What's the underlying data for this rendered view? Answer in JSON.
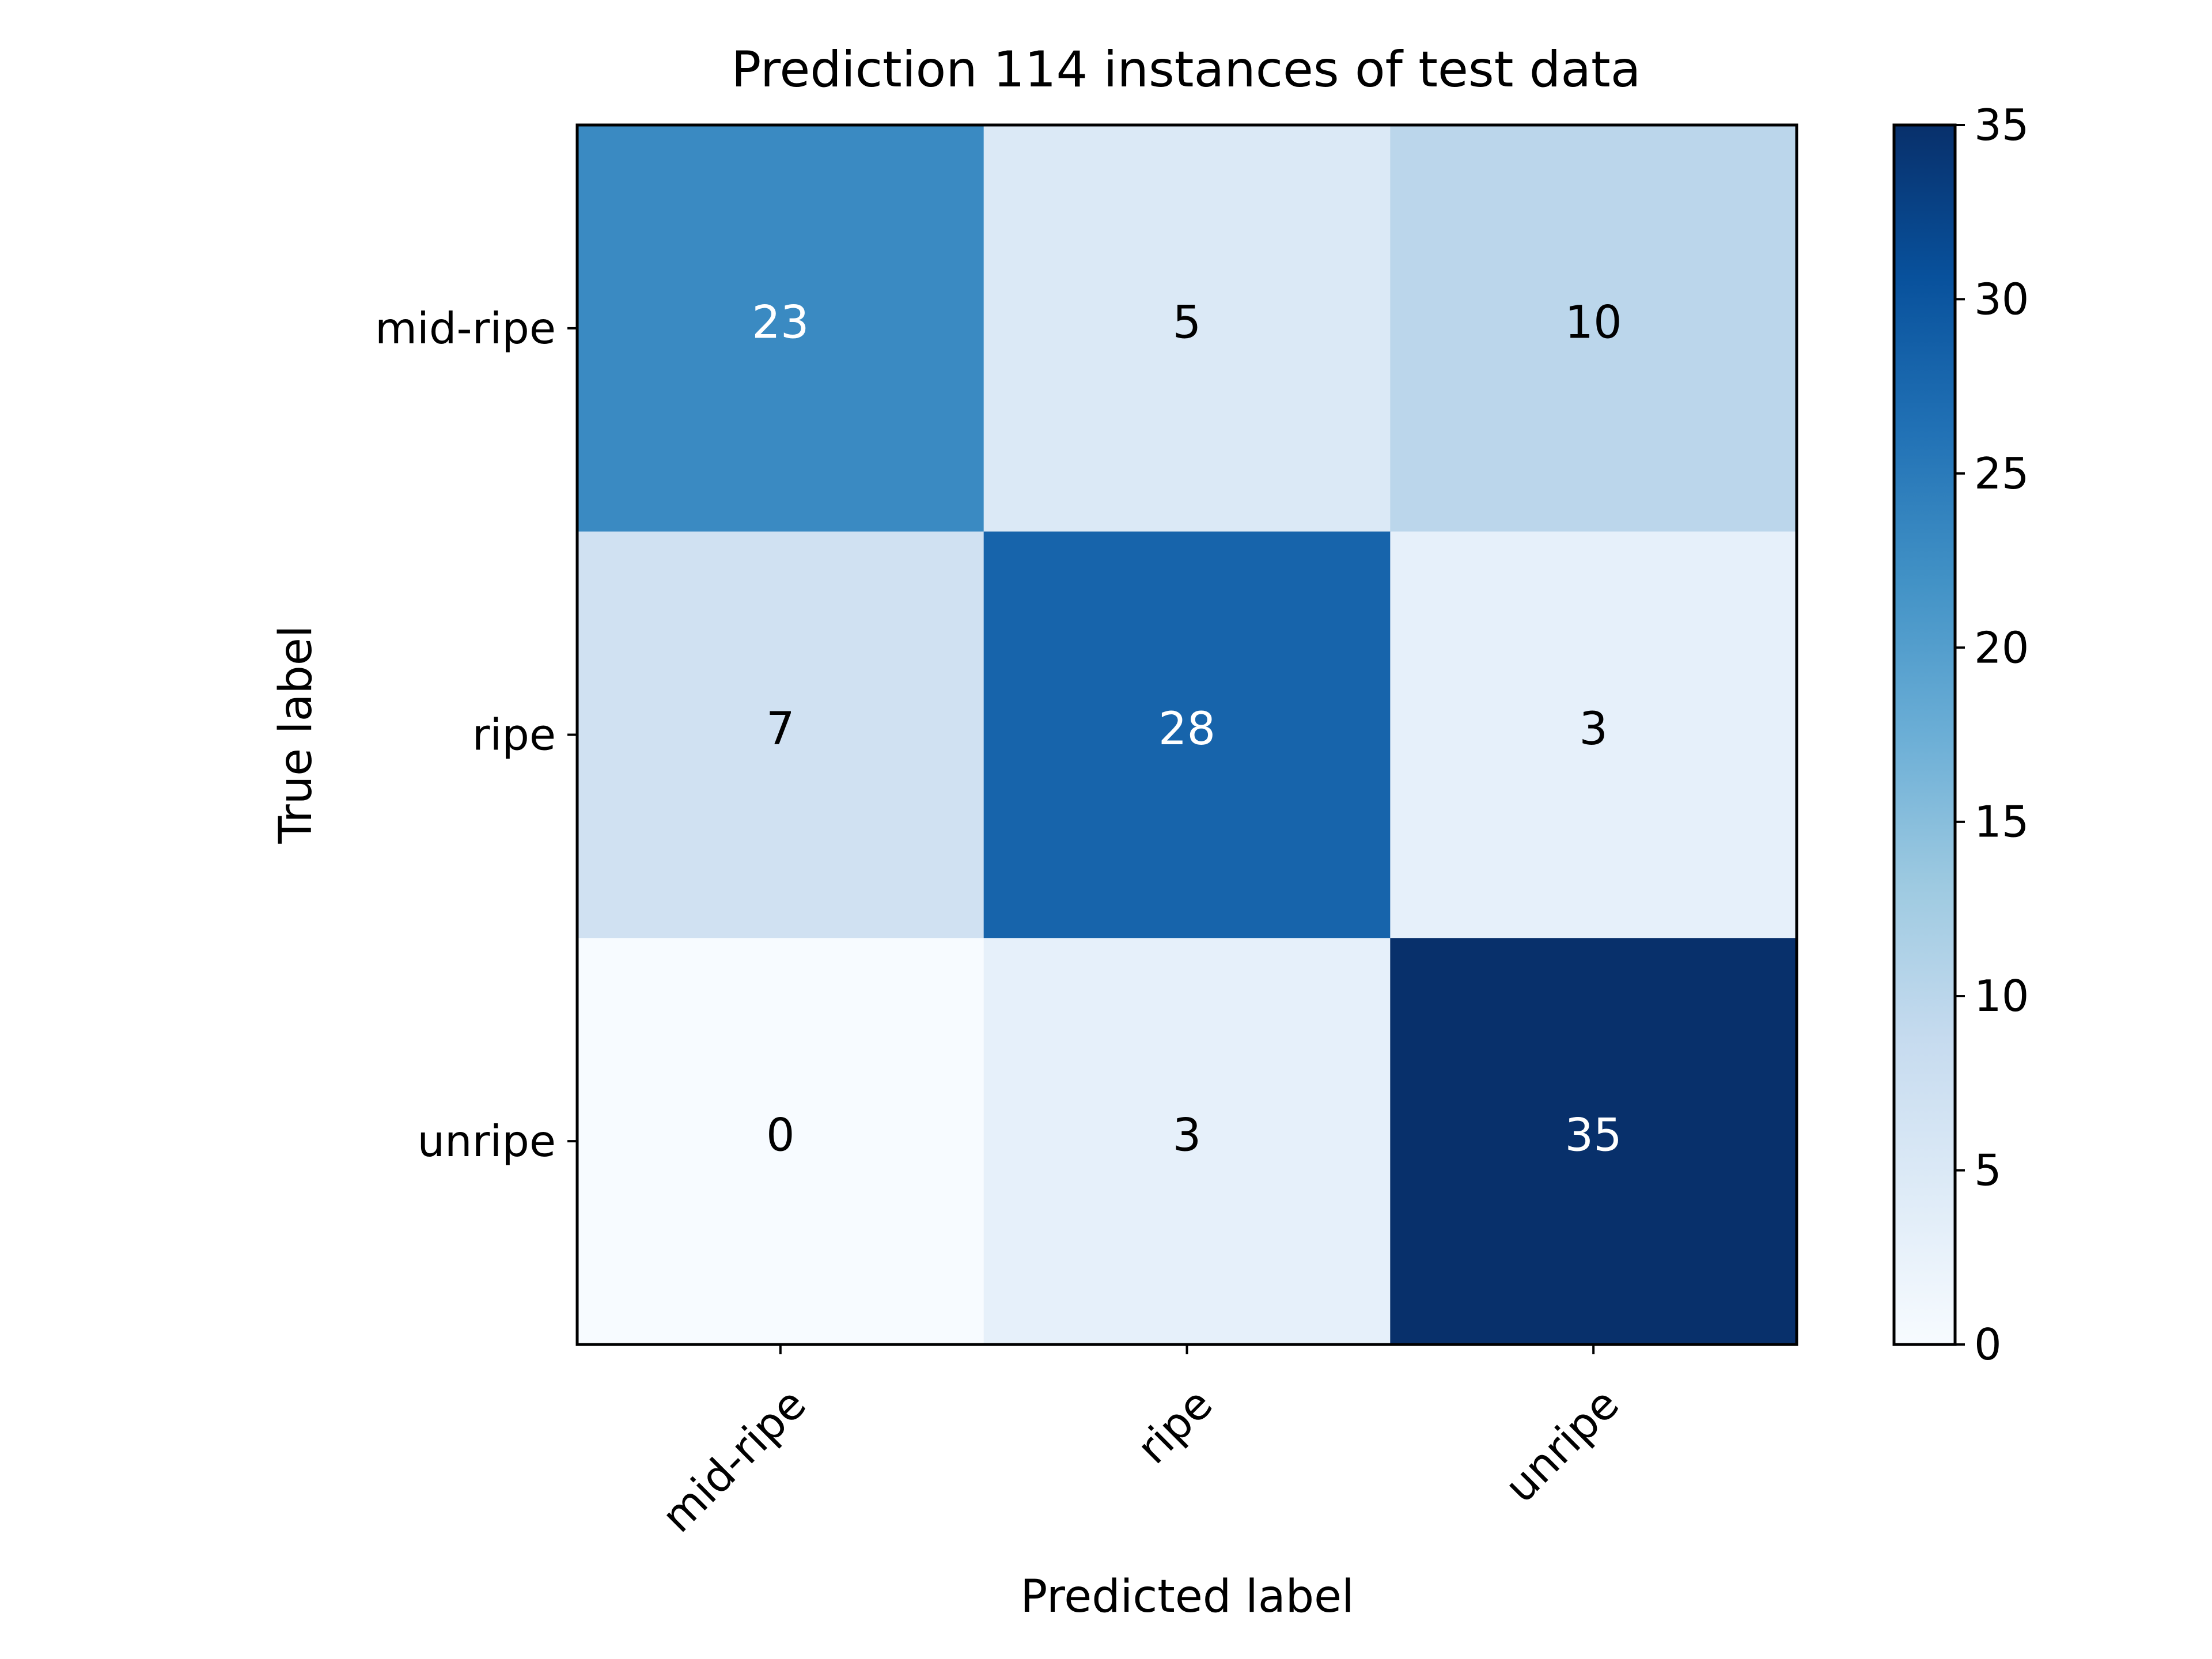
{
  "chart_data": {
    "type": "heatmap",
    "title": "Prediction 114 instances of test data",
    "xlabel": "Predicted label",
    "ylabel": "True label",
    "x_categories": [
      "mid-ripe",
      "ripe",
      "unripe"
    ],
    "y_categories": [
      "mid-ripe",
      "ripe",
      "unripe"
    ],
    "values": [
      [
        23,
        5,
        10
      ],
      [
        7,
        28,
        3
      ],
      [
        0,
        3,
        35
      ]
    ],
    "colormap": "Blues",
    "colorbar": {
      "range": [
        0,
        35
      ],
      "ticks": [
        0,
        5,
        10,
        15,
        20,
        25,
        30,
        35
      ]
    },
    "colors": {
      "light_text": "#ffffff",
      "dark_text": "#000000"
    }
  }
}
